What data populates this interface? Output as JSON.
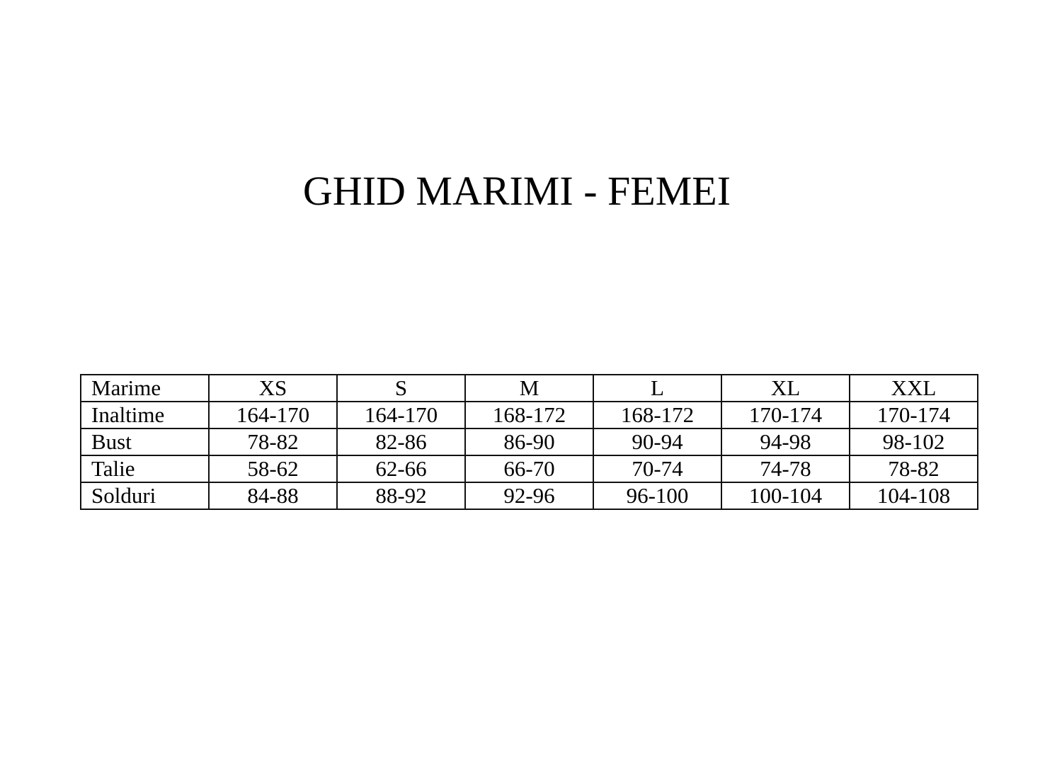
{
  "title": "GHID MARIMI - FEMEI",
  "table": {
    "header": {
      "label": "Marime",
      "sizes": [
        "XS",
        "S",
        "M",
        "L",
        "XL",
        "XXL"
      ]
    },
    "rows": [
      {
        "label": "Inaltime",
        "values": [
          "164-170",
          "164-170",
          "168-172",
          "168-172",
          "170-174",
          "170-174"
        ]
      },
      {
        "label": "Bust",
        "values": [
          "78-82",
          "82-86",
          "86-90",
          "90-94",
          "94-98",
          "98-102"
        ]
      },
      {
        "label": "Talie",
        "values": [
          "58-62",
          "62-66",
          "66-70",
          "70-74",
          "74-78",
          "78-82"
        ]
      },
      {
        "label": "Solduri",
        "values": [
          "84-88",
          "88-92",
          "92-96",
          "96-100",
          "100-104",
          "104-108"
        ]
      }
    ]
  }
}
